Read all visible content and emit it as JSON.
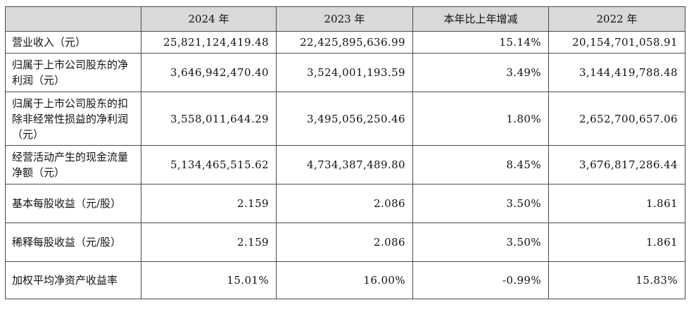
{
  "table": {
    "headers": [
      "",
      "2024 年",
      "2023 年",
      "本年比上年增减",
      "2022 年"
    ],
    "rows": [
      {
        "label": "营业收入（元）",
        "values": [
          "25,821,124,419.48",
          "22,425,895,636.99",
          "15.14%",
          "20,154,701,058.91"
        ]
      },
      {
        "label": "归属于上市公司股东的净利润（元）",
        "values": [
          "3,646,942,470.40",
          "3,524,001,193.59",
          "3.49%",
          "3,144,419,788.48"
        ]
      },
      {
        "label": "归属于上市公司股东的扣除非经常性损益的净利润（元）",
        "values": [
          "3,558,011,644.29",
          "3,495,056,250.46",
          "1.80%",
          "2,652,700,657.06"
        ]
      },
      {
        "label": "经营活动产生的现金流量净额（元）",
        "values": [
          "5,134,465,515.62",
          "4,734,387,489.80",
          "8.45%",
          "3,676,817,286.44"
        ]
      },
      {
        "label": "基本每股收益（元/股）",
        "values": [
          "2.159",
          "2.086",
          "3.50%",
          "1.861"
        ]
      },
      {
        "label": "稀释每股收益（元/股）",
        "values": [
          "2.159",
          "2.086",
          "3.50%",
          "1.861"
        ]
      },
      {
        "label": "加权平均净资产收益率",
        "values": [
          "15.01%",
          "16.00%",
          "-0.99%",
          "15.83%"
        ]
      }
    ]
  }
}
